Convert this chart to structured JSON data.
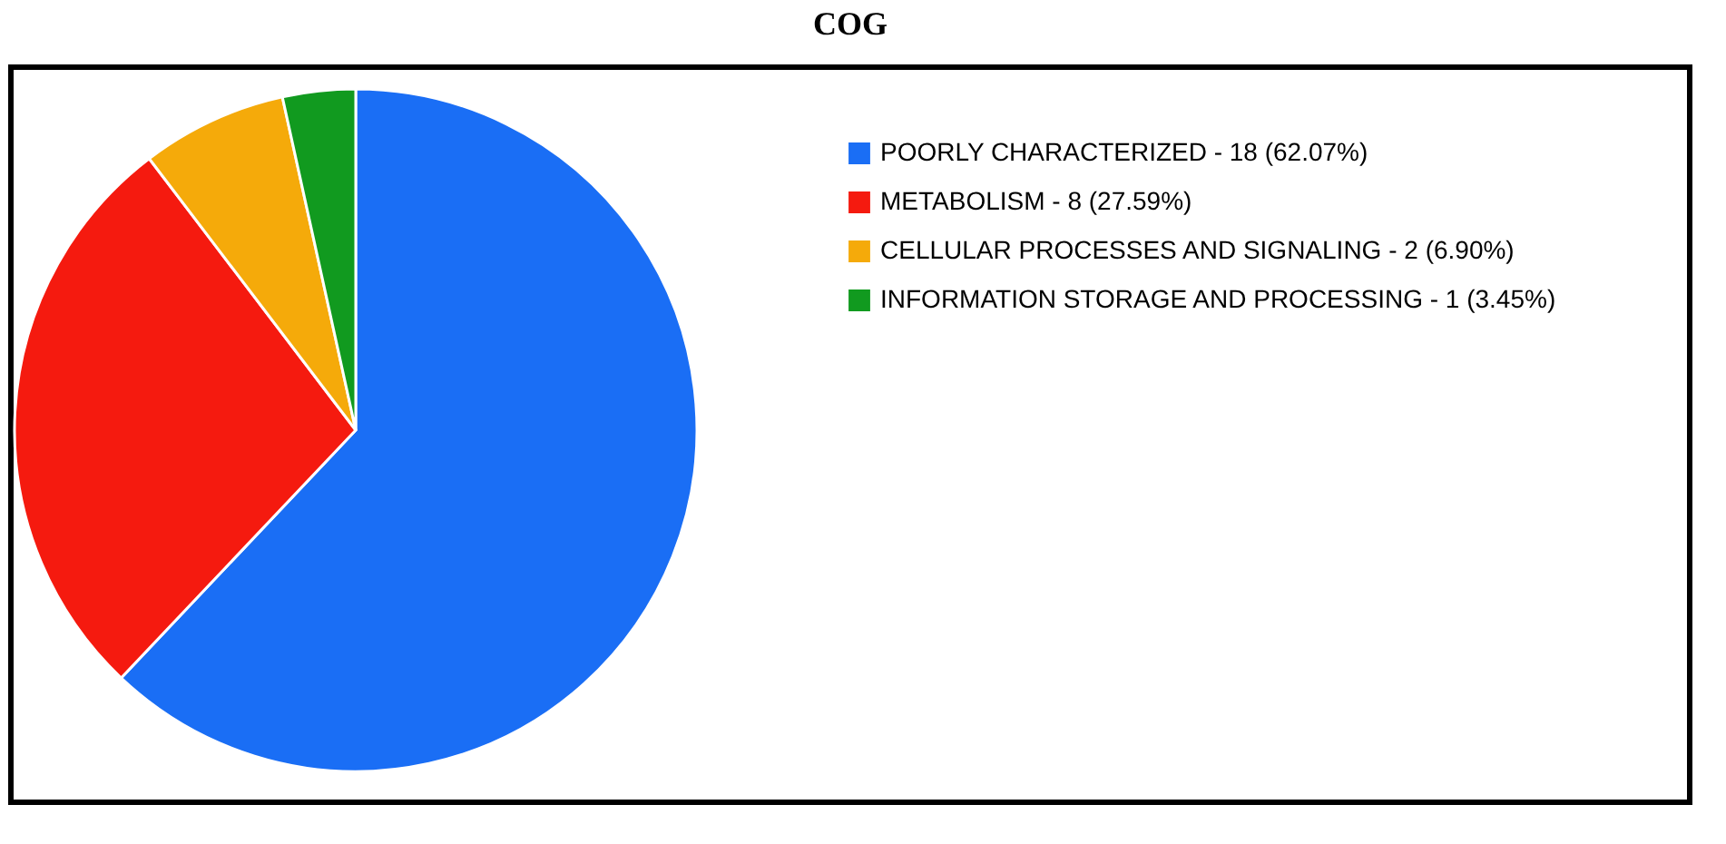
{
  "chart_data": {
    "type": "pie",
    "title": "COG",
    "categories": [
      "POORLY CHARACTERIZED - 18 (62.07%)",
      "METABOLISM - 8 (27.59%)",
      "CELLULAR PROCESSES AND SIGNALING - 2 (6.90%)",
      "INFORMATION STORAGE AND PROCESSING - 1 (3.45%)"
    ],
    "values": [
      62.07,
      27.59,
      6.9,
      3.45
    ],
    "colors": [
      "#1a6ef5",
      "#f51a0f",
      "#f5aa0a",
      "#119a1f"
    ],
    "legend": "right"
  }
}
